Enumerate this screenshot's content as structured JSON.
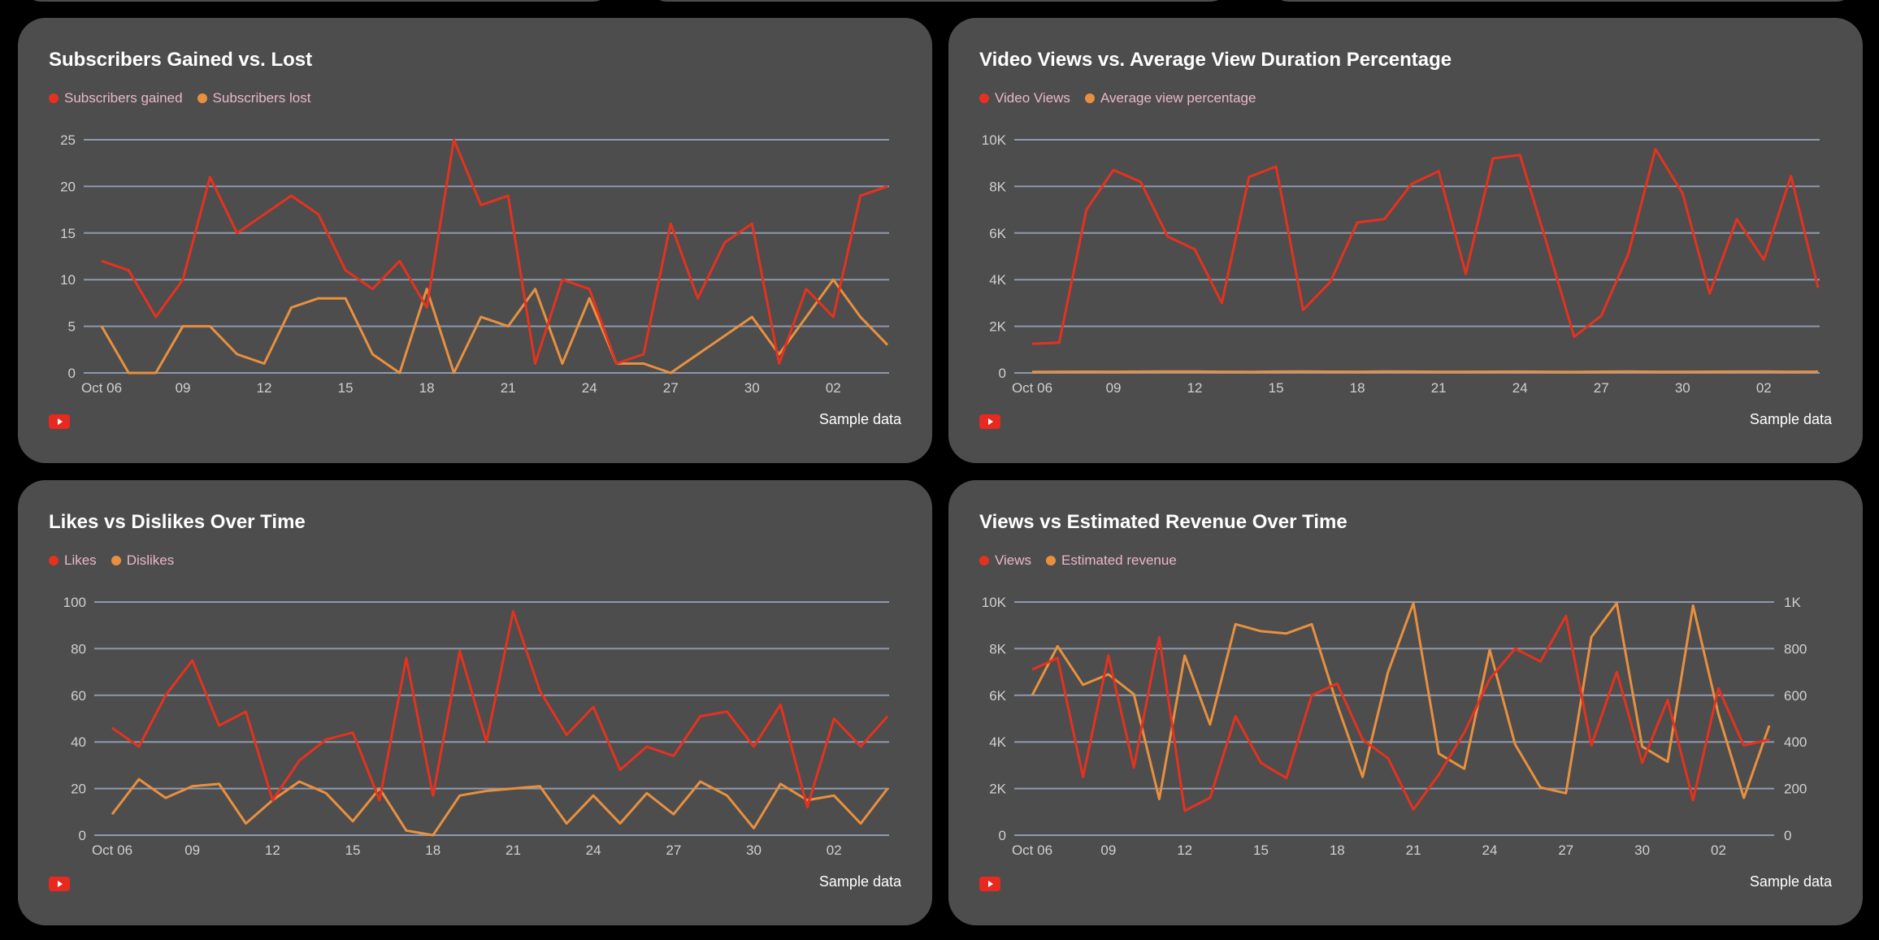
{
  "footer_label": "Sample data",
  "colors": {
    "series1": "#e5321f",
    "series2": "#e8903f",
    "card_bg": "#4d4d4d",
    "grid": "#8e99ad"
  },
  "x_tick_labels": [
    "Oct 06",
    "09",
    "12",
    "15",
    "18",
    "21",
    "24",
    "27",
    "30",
    "02"
  ],
  "chart_data": [
    {
      "type": "line",
      "title": "Subscribers Gained vs. Lost",
      "x_start": "2023-10-06",
      "x_end": "2023-11-04",
      "ylim": [
        0,
        25
      ],
      "y_ticks": [
        "0",
        "5",
        "10",
        "15",
        "20",
        "25"
      ],
      "grid": true,
      "legend": "top-left",
      "series": [
        {
          "name": "Subscribers gained",
          "values": [
            12,
            11,
            6,
            10,
            21,
            15,
            17,
            19,
            17,
            11,
            9,
            12,
            7,
            25,
            18,
            19,
            1,
            10,
            9,
            1,
            2,
            16,
            8,
            14,
            16,
            1,
            9,
            6,
            19,
            20
          ]
        },
        {
          "name": "Subscribers lost",
          "values": [
            5,
            0,
            0,
            5,
            5,
            2,
            1,
            7,
            8,
            8,
            2,
            0,
            9,
            0,
            6,
            5,
            9,
            1,
            8,
            1,
            1,
            0,
            2,
            4,
            6,
            2,
            6,
            10,
            6,
            3
          ]
        }
      ]
    },
    {
      "type": "line",
      "title": "Video Views vs. Average View Duration Percentage",
      "x_start": "2023-10-06",
      "x_end": "2023-11-04",
      "ylim": [
        0,
        10000
      ],
      "y_ticks": [
        "0",
        "2K",
        "4K",
        "6K",
        "8K",
        "10K"
      ],
      "grid": true,
      "legend": "top-left",
      "series": [
        {
          "name": "Video Views",
          "values": [
            1250,
            1300,
            7000,
            8700,
            8200,
            5850,
            5300,
            3000,
            8400,
            8850,
            2700,
            3900,
            6450,
            6600,
            8100,
            8650,
            4250,
            9200,
            9350,
            5500,
            1550,
            2450,
            5100,
            9600,
            7700,
            3400,
            6600,
            4850,
            8450,
            3650
          ]
        },
        {
          "name": "Average view percentage",
          "values": [
            45,
            48,
            52,
            50,
            55,
            60,
            58,
            50,
            47,
            55,
            60,
            52,
            50,
            58,
            55,
            48,
            50,
            53,
            55,
            50,
            47,
            52,
            60,
            50,
            48,
            52,
            55,
            58,
            50,
            52
          ]
        }
      ]
    },
    {
      "type": "line",
      "title": "Likes vs Dislikes Over Time",
      "x_start": "2023-10-06",
      "x_end": "2023-11-04",
      "ylim": [
        0,
        100
      ],
      "y_ticks": [
        "0",
        "20",
        "40",
        "60",
        "80",
        "100"
      ],
      "grid": true,
      "legend": "top-left",
      "series": [
        {
          "name": "Likes",
          "values": [
            46,
            38,
            60,
            75,
            47,
            53,
            15,
            32,
            41,
            44,
            15,
            76,
            17,
            79,
            40,
            96,
            62,
            43,
            55,
            28,
            38,
            34,
            51,
            53,
            38,
            56,
            12,
            50,
            38,
            51
          ]
        },
        {
          "name": "Dislikes",
          "values": [
            9,
            24,
            16,
            21,
            22,
            5,
            15,
            23,
            18,
            6,
            20,
            2,
            0,
            17,
            19,
            20,
            21,
            5,
            17,
            5,
            18,
            9,
            23,
            17,
            3,
            22,
            15,
            17,
            5,
            20
          ]
        }
      ]
    },
    {
      "type": "line",
      "title": "Views vs Estimated Revenue Over Time",
      "x_start": "2023-10-06",
      "x_end": "2023-11-04",
      "ylim": [
        0,
        10000
      ],
      "y_ticks": [
        "0",
        "2K",
        "4K",
        "6K",
        "8K",
        "10K"
      ],
      "y2lim": [
        0,
        1000
      ],
      "y2_ticks": [
        "0",
        "200",
        "400",
        "600",
        "800",
        "1K"
      ],
      "grid": true,
      "legend": "top-left",
      "series": [
        {
          "name": "Views",
          "axis": "left",
          "values": [
            7100,
            7600,
            2500,
            7700,
            2900,
            8500,
            1050,
            1600,
            5100,
            3100,
            2450,
            6000,
            6500,
            4100,
            3300,
            1100,
            2600,
            4400,
            6700,
            8000,
            7450,
            9400,
            3850,
            7000,
            3100,
            5800,
            1500,
            6300,
            3850,
            4100
          ]
        },
        {
          "name": "Estimated revenue",
          "axis": "right",
          "values": [
            600,
            810,
            645,
            690,
            605,
            155,
            770,
            475,
            905,
            875,
            865,
            905,
            560,
            250,
            700,
            995,
            350,
            285,
            795,
            390,
            205,
            180,
            850,
            995,
            380,
            315,
            985,
            520,
            160,
            470
          ]
        }
      ]
    }
  ]
}
